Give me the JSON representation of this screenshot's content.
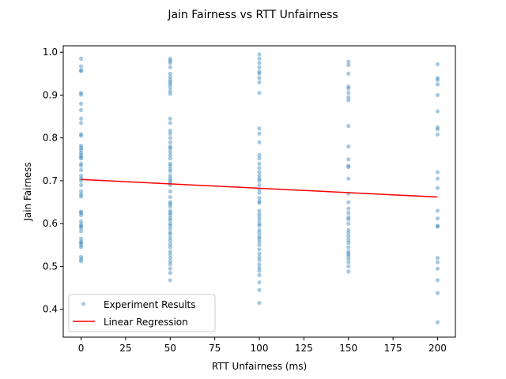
{
  "chart_data": {
    "type": "scatter",
    "title": "Jain Fairness vs RTT Unfairness",
    "xlabel": "RTT Unfairness (ms)",
    "ylabel": "Jain Fairness",
    "xlim": [
      -10,
      210
    ],
    "ylim": [
      0.335,
      1.015
    ],
    "xticks": [
      0,
      25,
      50,
      75,
      100,
      125,
      150,
      175,
      200
    ],
    "yticks": [
      0.4,
      0.5,
      0.6,
      0.7,
      0.8,
      0.9,
      1.0
    ],
    "ytick_labels": [
      "0.4",
      "0.5",
      "0.6",
      "0.7",
      "0.8",
      "0.9",
      "1.0"
    ],
    "grid": false,
    "legend_position": "lower-left",
    "colors": {
      "points": "#1f77b4",
      "regression": "#ff0000"
    },
    "series": [
      {
        "name": "Experiment Results",
        "kind": "scatter",
        "x_groups": [
          0,
          50,
          100,
          150,
          200
        ],
        "y_groups": [
          [
            0.985,
            0.967,
            0.958,
            0.956,
            0.905,
            0.901,
            0.88,
            0.865,
            0.845,
            0.835,
            0.809,
            0.805,
            0.782,
            0.777,
            0.772,
            0.765,
            0.76,
            0.755,
            0.752,
            0.74,
            0.735,
            0.725,
            0.712,
            0.705,
            0.7,
            0.69,
            0.675,
            0.668,
            0.663,
            0.628,
            0.625,
            0.62,
            0.605,
            0.598,
            0.594,
            0.59,
            0.582,
            0.565,
            0.558,
            0.555,
            0.55,
            0.545,
            0.522,
            0.517,
            0.512
          ],
          [
            0.985,
            0.98,
            0.975,
            0.965,
            0.95,
            0.942,
            0.935,
            0.93,
            0.925,
            0.918,
            0.91,
            0.903,
            0.845,
            0.835,
            0.817,
            0.81,
            0.8,
            0.79,
            0.78,
            0.776,
            0.768,
            0.76,
            0.752,
            0.74,
            0.735,
            0.728,
            0.722,
            0.712,
            0.705,
            0.7,
            0.695,
            0.69,
            0.675,
            0.662,
            0.65,
            0.646,
            0.64,
            0.63,
            0.625,
            0.62,
            0.613,
            0.608,
            0.6,
            0.595,
            0.588,
            0.58,
            0.575,
            0.567,
            0.56,
            0.552,
            0.545,
            0.535,
            0.528,
            0.52,
            0.512,
            0.505,
            0.495,
            0.485,
            0.468
          ],
          [
            0.995,
            0.985,
            0.975,
            0.965,
            0.955,
            0.95,
            0.94,
            0.93,
            0.905,
            0.822,
            0.81,
            0.79,
            0.76,
            0.752,
            0.74,
            0.73,
            0.72,
            0.712,
            0.705,
            0.7,
            0.69,
            0.68,
            0.672,
            0.66,
            0.652,
            0.648,
            0.63,
            0.622,
            0.615,
            0.608,
            0.6,
            0.595,
            0.585,
            0.578,
            0.57,
            0.565,
            0.558,
            0.55,
            0.54,
            0.53,
            0.522,
            0.515,
            0.505,
            0.497,
            0.49,
            0.48,
            0.463,
            0.445,
            0.415
          ],
          [
            0.978,
            0.97,
            0.95,
            0.92,
            0.915,
            0.905,
            0.895,
            0.888,
            0.828,
            0.78,
            0.75,
            0.735,
            0.732,
            0.705,
            0.67,
            0.65,
            0.635,
            0.625,
            0.615,
            0.61,
            0.6,
            0.585,
            0.578,
            0.57,
            0.562,
            0.555,
            0.545,
            0.535,
            0.53,
            0.525,
            0.518,
            0.51,
            0.5,
            0.488
          ],
          [
            0.972,
            0.94,
            0.935,
            0.925,
            0.9,
            0.862,
            0.825,
            0.82,
            0.808,
            0.72,
            0.705,
            0.683,
            0.63,
            0.612,
            0.595,
            0.593,
            0.52,
            0.51,
            0.495,
            0.468,
            0.438,
            0.37
          ]
        ]
      },
      {
        "name": "Linear Regression",
        "kind": "line",
        "x": [
          0,
          200
        ],
        "y": [
          0.703,
          0.662
        ]
      }
    ]
  }
}
